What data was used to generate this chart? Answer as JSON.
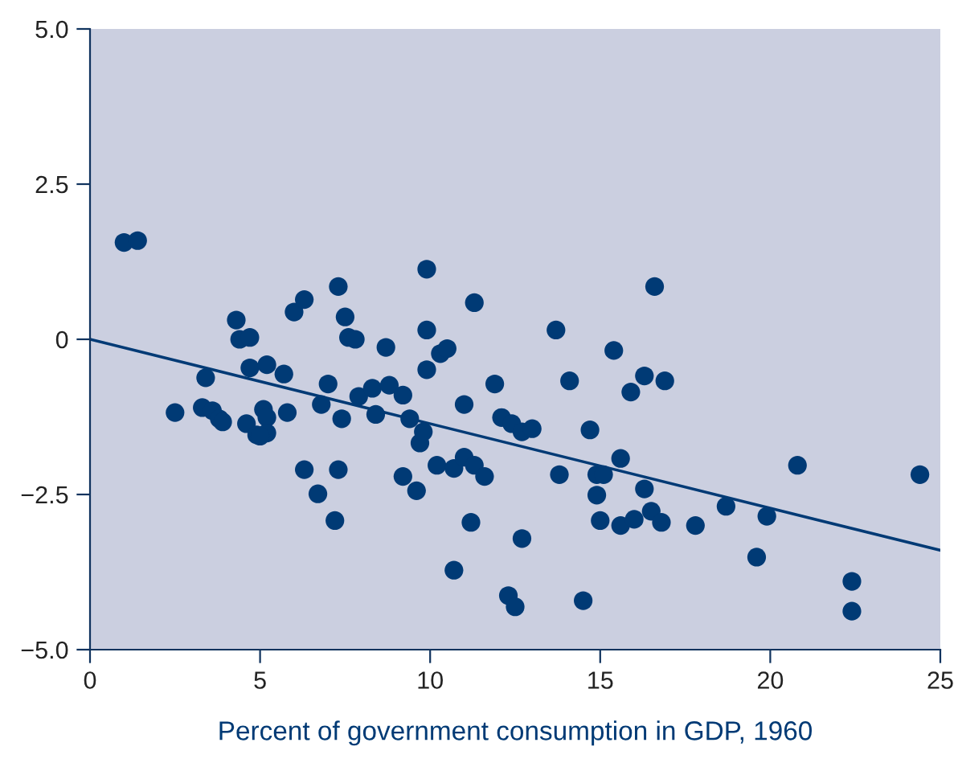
{
  "chart_data": {
    "type": "scatter",
    "xlabel": "Percent of government consumption in GDP, 1960",
    "xlim": [
      0,
      25
    ],
    "xticks": [
      0,
      5,
      10,
      15,
      20,
      25
    ],
    "ylim": [
      -5,
      5
    ],
    "yticks": [
      {
        "value": -5,
        "label": "−5.0"
      },
      {
        "value": -2.5,
        "label": "−2.5"
      },
      0,
      {
        "value": 2.5,
        "label": "2.5"
      },
      {
        "value": 5,
        "label": "5.0"
      }
    ],
    "grid": false,
    "legend": false,
    "series": [
      {
        "marker": "circle",
        "color": "#003a75",
        "x": [
          1.0,
          1.4,
          2.5,
          3.3,
          3.4,
          3.6,
          3.8,
          3.9,
          4.3,
          4.4,
          4.7,
          4.7,
          4.6,
          4.9,
          5.2,
          5.1,
          5.2,
          5.2,
          5.0,
          5.7,
          5.8,
          6.0,
          6.3,
          6.3,
          6.7,
          6.8,
          7.0,
          7.3,
          7.3,
          7.2,
          7.4,
          7.5,
          7.6,
          7.8,
          7.9,
          8.3,
          8.4,
          8.7,
          8.8,
          9.2,
          9.2,
          9.4,
          9.6,
          9.7,
          9.8,
          9.9,
          9.9,
          9.9,
          10.2,
          10.3,
          10.5,
          10.7,
          10.7,
          11.0,
          11.0,
          11.2,
          11.3,
          11.3,
          11.6,
          11.9,
          12.1,
          12.3,
          12.4,
          12.5,
          12.7,
          12.7,
          13.0,
          13.7,
          13.8,
          14.1,
          14.5,
          14.7,
          14.9,
          14.9,
          15.0,
          15.1,
          15.4,
          15.6,
          15.6,
          15.9,
          16.0,
          16.3,
          16.3,
          16.5,
          16.6,
          16.8,
          16.9,
          17.8,
          18.7,
          19.9,
          19.6,
          20.8,
          22.4,
          22.4,
          24.4
        ],
        "values": [
          1.56,
          1.59,
          -1.18,
          -1.1,
          -0.62,
          -1.15,
          -1.28,
          -1.33,
          0.31,
          0.0,
          0.03,
          -0.46,
          -1.36,
          -1.54,
          -0.41,
          -1.13,
          -1.26,
          -1.51,
          -1.56,
          -0.56,
          -1.18,
          0.44,
          0.64,
          -2.1,
          -2.49,
          -1.05,
          -0.72,
          0.85,
          -2.1,
          -2.92,
          -1.28,
          0.36,
          0.03,
          0.0,
          -0.92,
          -0.79,
          -1.21,
          -0.13,
          -0.74,
          -0.9,
          -2.21,
          -1.28,
          -2.44,
          -1.67,
          -1.49,
          0.15,
          1.13,
          -0.49,
          -2.03,
          -0.23,
          -0.15,
          -3.72,
          -2.08,
          -1.9,
          -1.05,
          -2.95,
          -2.03,
          0.59,
          -2.21,
          -0.72,
          -1.26,
          -4.13,
          -1.36,
          -4.31,
          -1.49,
          -3.21,
          -1.44,
          0.15,
          -2.18,
          -0.67,
          -4.21,
          -1.46,
          -2.18,
          -2.51,
          -2.92,
          -2.18,
          -0.18,
          -3.0,
          -1.92,
          -0.85,
          -2.9,
          -0.59,
          -2.41,
          -2.77,
          0.85,
          -2.95,
          -0.67,
          -3.0,
          -2.69,
          -2.85,
          -3.51,
          -2.03,
          -3.9,
          -4.38,
          -2.18
        ]
      },
      {
        "type": "line",
        "color": "#003a75",
        "x": [
          0,
          25
        ],
        "values": [
          0,
          -3.4
        ]
      }
    ]
  }
}
